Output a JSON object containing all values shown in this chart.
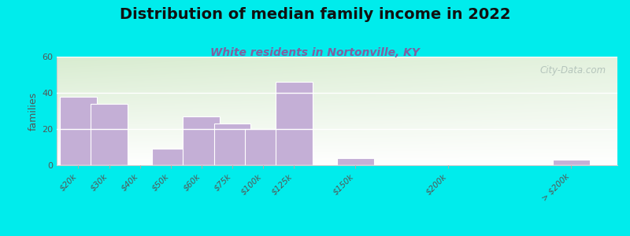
{
  "title": "Distribution of median family income in 2022",
  "subtitle": "White residents in Nortonville, KY",
  "ylabel": "families",
  "categories": [
    "$20k",
    "$30k",
    "$40k",
    "$50k",
    "$60k",
    "$75k",
    "$100k",
    "$125k",
    "$150k",
    "$200k",
    "> $200k"
  ],
  "values": [
    38,
    34,
    0,
    9,
    27,
    23,
    20,
    46,
    4,
    0,
    3
  ],
  "bar_color": "#c4afd6",
  "bar_edge_color": "#ffffff",
  "ylim": [
    0,
    60
  ],
  "yticks": [
    0,
    20,
    40,
    60
  ],
  "bg_outer": "#00ecec",
  "bg_plot_topleft": "#d8ecd0",
  "bg_plot_white": "#ffffff",
  "title_fontsize": 14,
  "subtitle_fontsize": 10,
  "subtitle_color": "#8060a0",
  "watermark": "City-Data.com",
  "watermark_color": "#b0c0b8",
  "x_positions": [
    0,
    1,
    2,
    3,
    4,
    5,
    6,
    7,
    9,
    12,
    16
  ],
  "bar_width": 1.2
}
